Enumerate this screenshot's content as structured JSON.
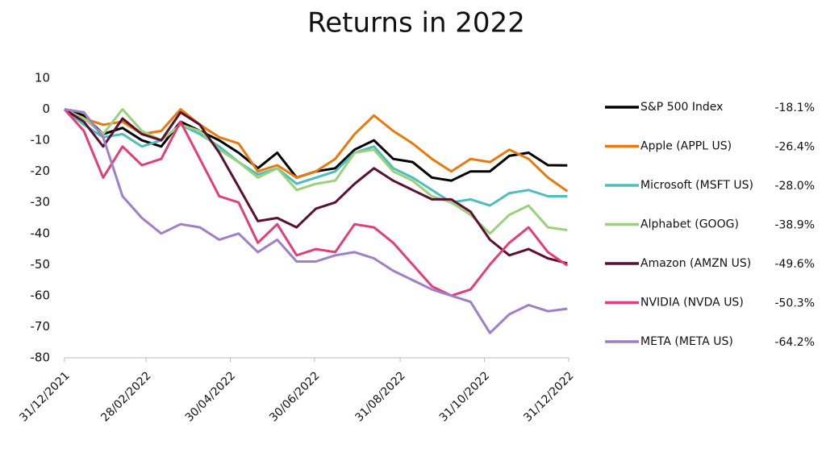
{
  "chart_data": {
    "type": "line",
    "title": "Returns in 2022",
    "x": [
      "31/12/2021",
      "14/01/2022",
      "28/01/2022",
      "11/02/2022",
      "25/02/2022",
      "11/03/2022",
      "25/03/2022",
      "08/04/2022",
      "22/04/2022",
      "06/05/2022",
      "20/05/2022",
      "03/06/2022",
      "17/06/2022",
      "01/07/2022",
      "15/07/2022",
      "29/07/2022",
      "12/08/2022",
      "26/08/2022",
      "09/09/2022",
      "23/09/2022",
      "07/10/2022",
      "21/10/2022",
      "04/11/2022",
      "18/11/2022",
      "02/12/2022",
      "16/12/2022",
      "30/12/2022"
    ],
    "xlim": [
      "31/12/2021",
      "31/12/2022"
    ],
    "xticks": [
      "31/12/2021",
      "28/02/2022",
      "30/04/2022",
      "30/06/2022",
      "31/08/2022",
      "31/10/2022",
      "31/12/2022"
    ],
    "ylim": [
      -80,
      10
    ],
    "yticks": [
      10,
      0,
      -10,
      -20,
      -30,
      -40,
      -50,
      -60,
      -70,
      -80
    ],
    "series": [
      {
        "name": "S&P 500 Index",
        "color": "#000000",
        "values": [
          0,
          -2,
          -8,
          -6,
          -10,
          -12,
          -4,
          -7,
          -10,
          -14,
          -19,
          -14,
          -22,
          -20,
          -19,
          -13,
          -10,
          -16,
          -17,
          -22,
          -23,
          -20,
          -20,
          -15,
          -14,
          -18,
          -18.1
        ],
        "value_labels": [
          null,
          null,
          null,
          null,
          null,
          null,
          null,
          null,
          null,
          null,
          null,
          null,
          null,
          null,
          null,
          null,
          null,
          null,
          null,
          null,
          null,
          null,
          null,
          null,
          null,
          null,
          "-18.1%"
        ]
      },
      {
        "name": "Apple (APPL US)",
        "color": "#e8790d",
        "values": [
          0,
          -3,
          -5,
          -4,
          -8,
          -7,
          0,
          -5,
          -9,
          -11,
          -20,
          -18,
          -22,
          -20,
          -16,
          -8,
          -2,
          -7,
          -11,
          -16,
          -20,
          -16,
          -17,
          -13,
          -16,
          -22,
          -26.4
        ],
        "value_labels": [
          null,
          null,
          null,
          null,
          null,
          null,
          null,
          null,
          null,
          null,
          null,
          null,
          null,
          null,
          null,
          null,
          null,
          null,
          null,
          null,
          null,
          null,
          null,
          null,
          null,
          null,
          "-26.4%"
        ]
      },
      {
        "name": "Microsoft (MSFT US)",
        "color": "#4dbdbd",
        "values": [
          0,
          -5,
          -9,
          -8,
          -12,
          -10,
          -5,
          -8,
          -12,
          -17,
          -21,
          -19,
          -24,
          -22,
          -20,
          -14,
          -12,
          -19,
          -22,
          -26,
          -30,
          -29,
          -31,
          -27,
          -26,
          -28,
          -28.0
        ],
        "value_labels": [
          null,
          null,
          null,
          null,
          null,
          null,
          null,
          null,
          null,
          null,
          null,
          null,
          null,
          null,
          null,
          null,
          null,
          null,
          null,
          null,
          null,
          null,
          null,
          null,
          null,
          null,
          "-28.0%"
        ]
      },
      {
        "name": "Alphabet (GOOG)",
        "color": "#9ad17a",
        "values": [
          0,
          -3,
          -8,
          0,
          -7,
          -10,
          -5,
          -7,
          -13,
          -17,
          -22,
          -19,
          -26,
          -24,
          -23,
          -14,
          -13,
          -20,
          -23,
          -28,
          -30,
          -34,
          -40,
          -34,
          -31,
          -38,
          -38.9
        ],
        "value_labels": [
          null,
          null,
          null,
          null,
          null,
          null,
          null,
          null,
          null,
          null,
          null,
          null,
          null,
          null,
          null,
          null,
          null,
          null,
          null,
          null,
          null,
          null,
          null,
          null,
          null,
          null,
          "-38.9%"
        ]
      },
      {
        "name": "Amazon (AMZN US)",
        "color": "#5a0f33",
        "values": [
          0,
          -4,
          -12,
          -3,
          -8,
          -10,
          -1,
          -5,
          -14,
          -25,
          -36,
          -35,
          -38,
          -32,
          -30,
          -24,
          -19,
          -23,
          -26,
          -29,
          -29,
          -33,
          -42,
          -47,
          -45,
          -48,
          -49.6
        ],
        "value_labels": [
          null,
          null,
          null,
          null,
          null,
          null,
          null,
          null,
          null,
          null,
          null,
          null,
          null,
          null,
          null,
          null,
          null,
          null,
          null,
          null,
          null,
          null,
          null,
          null,
          null,
          null,
          "-49.6%"
        ]
      },
      {
        "name": "NVIDIA (NVDA US)",
        "color": "#e0407a",
        "values": [
          0,
          -7,
          -22,
          -12,
          -18,
          -16,
          -4,
          -16,
          -28,
          -30,
          -43,
          -37,
          -47,
          -45,
          -46,
          -37,
          -38,
          -43,
          -50,
          -57,
          -60,
          -58,
          -50,
          -43,
          -38,
          -46,
          -50.3
        ],
        "value_labels": [
          null,
          null,
          null,
          null,
          null,
          null,
          null,
          null,
          null,
          null,
          null,
          null,
          null,
          null,
          null,
          null,
          null,
          null,
          null,
          null,
          null,
          null,
          null,
          null,
          null,
          null,
          "-50.3%"
        ]
      },
      {
        "name": "META (META US)",
        "color": "#9e7fc8",
        "values": [
          0,
          -1,
          -9,
          -28,
          -35,
          -40,
          -37,
          -38,
          -42,
          -40,
          -46,
          -42,
          -49,
          -49,
          -47,
          -46,
          -48,
          -52,
          -55,
          -58,
          -60,
          -62,
          -72,
          -66,
          -63,
          -65,
          -64.2
        ],
        "value_labels": [
          null,
          null,
          null,
          null,
          null,
          null,
          null,
          null,
          null,
          null,
          null,
          null,
          null,
          null,
          null,
          null,
          null,
          null,
          null,
          null,
          null,
          null,
          null,
          null,
          null,
          null,
          "-64.2%"
        ]
      }
    ]
  }
}
